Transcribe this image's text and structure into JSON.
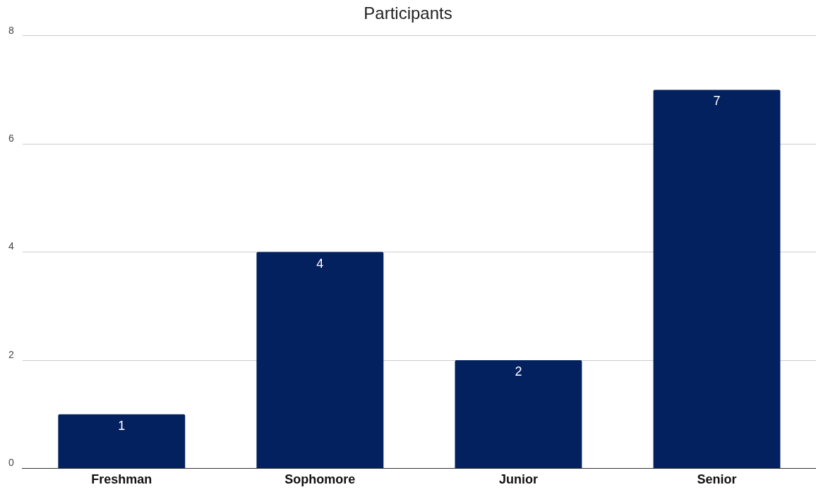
{
  "chart_data": {
    "type": "bar",
    "title": "Participants",
    "categories": [
      "Freshman",
      "Sophomore",
      "Junior",
      "Senior"
    ],
    "values": [
      1,
      4,
      2,
      7
    ],
    "color": "#03205f",
    "ylim": [
      0,
      8
    ],
    "yticks": [
      0,
      2,
      4,
      6,
      8
    ],
    "grid": "y",
    "data_labels": true,
    "legend": false
  }
}
